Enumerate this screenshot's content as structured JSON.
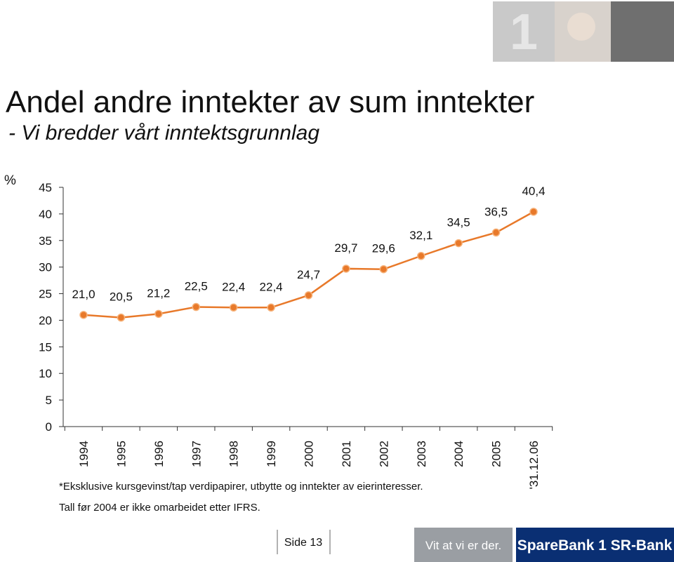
{
  "chart_data": {
    "type": "line",
    "title": "Andel andre inntekter av sum inntekter",
    "subtitle": "- Vi bredder vårt inntektsgrunnlag",
    "y_label": "%",
    "categories": [
      "1994",
      "1995",
      "1996",
      "1997",
      "1998",
      "1999",
      "2000",
      "2001",
      "2002",
      "2003",
      "2004",
      "2005",
      "'31.12.06"
    ],
    "values": [
      21.0,
      20.5,
      21.2,
      22.5,
      22.4,
      22.4,
      24.7,
      29.7,
      29.6,
      32.1,
      34.5,
      36.5,
      40.4
    ],
    "value_labels": [
      "21,0",
      "20,5",
      "21,2",
      "22,5",
      "22,4",
      "22,4",
      "24,7",
      "29,7",
      "29,6",
      "32,1",
      "34,5",
      "36,5",
      "40,4"
    ],
    "color": "#e8792a",
    "ylim": [
      0,
      45
    ],
    "yticks": [
      0,
      5,
      10,
      15,
      20,
      25,
      30,
      35,
      40,
      45
    ],
    "notes": [
      "*Eksklusive kursgevinst/tap verdipapirer, utbytte og inntekter av eierinteresser.",
      "Tall før 2004 er ikke omarbeidet etter IFRS."
    ]
  },
  "footer": {
    "page": "Side 13",
    "slogan": "Vit at vi er der.",
    "brand": "SpareBank 1 SR-Bank"
  }
}
